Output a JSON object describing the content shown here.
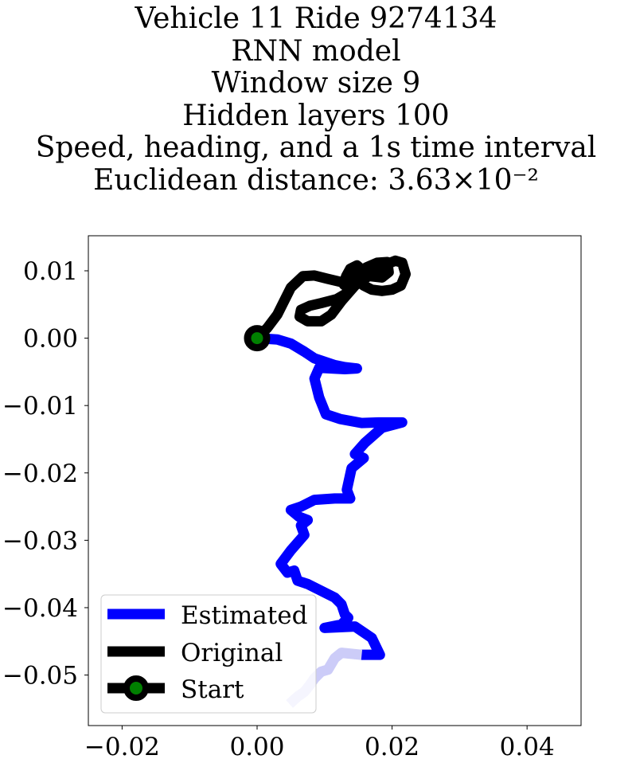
{
  "chart_data": {
    "type": "line",
    "title_lines": [
      "Vehicle 11 Ride 9274134",
      "RNN model",
      "Window size 9",
      "Hidden layers 100",
      "Speed, heading, and a 1s time interval",
      "Euclidean distance: 3.63×10⁻²"
    ],
    "xlabel": "",
    "ylabel": "",
    "xlim": [
      -0.025,
      0.048
    ],
    "ylim": [
      -0.0575,
      0.0152
    ],
    "x_ticks": [
      -0.02,
      0.0,
      0.02,
      0.04
    ],
    "x_tick_labels": [
      "−0.02",
      "0.00",
      "0.02",
      "0.04"
    ],
    "y_ticks": [
      0.01,
      0.0,
      -0.01,
      -0.02,
      -0.03,
      -0.04,
      -0.05
    ],
    "y_tick_labels": [
      "0.01",
      "0.00",
      "−0.01",
      "−0.02",
      "−0.03",
      "−0.04",
      "−0.05"
    ],
    "grid": false,
    "legend_position": "lower-left",
    "series": [
      {
        "name": "Estimated",
        "color": "#0000ff",
        "faded_color": "#ccccf8",
        "points": [
          [
            0.0,
            0.0
          ],
          [
            0.003,
            -0.0002
          ],
          [
            0.005,
            -0.0008
          ],
          [
            0.007,
            -0.002
          ],
          [
            0.0085,
            -0.003
          ],
          [
            0.01,
            -0.0035
          ],
          [
            0.0115,
            -0.004
          ],
          [
            0.013,
            -0.0043
          ],
          [
            0.0148,
            -0.0045
          ],
          [
            0.013,
            -0.0046
          ],
          [
            0.011,
            -0.0045
          ],
          [
            0.0092,
            -0.0044
          ],
          [
            0.0085,
            -0.006
          ],
          [
            0.0092,
            -0.0088
          ],
          [
            0.0102,
            -0.0113
          ],
          [
            0.0123,
            -0.012
          ],
          [
            0.0155,
            -0.0126
          ],
          [
            0.018,
            -0.0125
          ],
          [
            0.0215,
            -0.0125
          ],
          [
            0.0185,
            -0.0133
          ],
          [
            0.016,
            -0.0155
          ],
          [
            0.0145,
            -0.0172
          ],
          [
            0.0158,
            -0.0178
          ],
          [
            0.014,
            -0.0193
          ],
          [
            0.0133,
            -0.0225
          ],
          [
            0.0138,
            -0.0238
          ],
          [
            0.0115,
            -0.0238
          ],
          [
            0.0085,
            -0.024
          ],
          [
            0.0065,
            -0.025
          ],
          [
            0.005,
            -0.0255
          ],
          [
            0.0062,
            -0.0265
          ],
          [
            0.0075,
            -0.027
          ],
          [
            0.0065,
            -0.0278
          ],
          [
            0.007,
            -0.0292
          ],
          [
            0.005,
            -0.0315
          ],
          [
            0.0035,
            -0.0335
          ],
          [
            0.0045,
            -0.0348
          ],
          [
            0.0055,
            -0.0345
          ],
          [
            0.006,
            -0.036
          ],
          [
            0.0075,
            -0.0365
          ],
          [
            0.0095,
            -0.0375
          ],
          [
            0.0115,
            -0.0385
          ],
          [
            0.0125,
            -0.0395
          ],
          [
            0.013,
            -0.041
          ],
          [
            0.0135,
            -0.0415
          ],
          [
            0.0125,
            -0.0425
          ],
          [
            0.01,
            -0.043
          ],
          [
            0.0145,
            -0.0428
          ],
          [
            0.017,
            -0.0445
          ],
          [
            0.0182,
            -0.047
          ],
          [
            0.0155,
            -0.047
          ],
          [
            0.0125,
            -0.0467
          ],
          [
            0.0115,
            -0.0475
          ],
          [
            0.0105,
            -0.0492
          ],
          [
            0.0095,
            -0.0495
          ],
          [
            0.0085,
            -0.0505
          ],
          [
            0.0078,
            -0.0515
          ],
          [
            0.007,
            -0.0525
          ],
          [
            0.006,
            -0.0532
          ],
          [
            0.0048,
            -0.0543
          ]
        ]
      },
      {
        "name": "Original",
        "color": "#000000",
        "points": [
          [
            0.0,
            0.0
          ],
          [
            0.0015,
            0.0015
          ],
          [
            0.003,
            0.0035
          ],
          [
            0.004,
            0.0055
          ],
          [
            0.005,
            0.0075
          ],
          [
            0.0068,
            0.0092
          ],
          [
            0.0085,
            0.0093
          ],
          [
            0.0105,
            0.0088
          ],
          [
            0.013,
            0.0082
          ],
          [
            0.0145,
            0.008
          ],
          [
            0.0155,
            0.0092
          ],
          [
            0.0145,
            0.0105
          ],
          [
            0.0135,
            0.0085
          ],
          [
            0.0135,
            0.0068
          ],
          [
            0.0118,
            0.0058
          ],
          [
            0.0095,
            0.0052
          ],
          [
            0.0078,
            0.0048
          ],
          [
            0.0065,
            0.0042
          ],
          [
            0.0063,
            0.0032
          ],
          [
            0.0075,
            0.0025
          ],
          [
            0.0095,
            0.0025
          ],
          [
            0.011,
            0.0035
          ],
          [
            0.0125,
            0.0055
          ],
          [
            0.0145,
            0.0078
          ],
          [
            0.0165,
            0.0092
          ],
          [
            0.0185,
            0.0107
          ],
          [
            0.0205,
            0.0115
          ],
          [
            0.0215,
            0.0112
          ],
          [
            0.022,
            0.0095
          ],
          [
            0.0213,
            0.0078
          ],
          [
            0.02,
            0.0072
          ],
          [
            0.0185,
            0.007
          ],
          [
            0.017,
            0.0072
          ],
          [
            0.0158,
            0.0078
          ],
          [
            0.0155,
            0.0095
          ],
          [
            0.0162,
            0.0105
          ],
          [
            0.0178,
            0.0112
          ],
          [
            0.0193,
            0.0113
          ],
          [
            0.0195,
            0.0098
          ],
          [
            0.0185,
            0.009
          ],
          [
            0.0168,
            0.0092
          ],
          [
            0.0155,
            0.0102
          ],
          [
            0.0148,
            0.0108
          ],
          [
            0.0138,
            0.0103
          ],
          [
            0.0132,
            0.0092
          ],
          [
            0.0128,
            0.008
          ],
          [
            0.0138,
            0.0072
          ]
        ]
      }
    ],
    "start_point": [
      0.0,
      0.0
    ],
    "start": {
      "name": "Start",
      "marker_color": "#008000",
      "edge_color": "#000000"
    }
  }
}
